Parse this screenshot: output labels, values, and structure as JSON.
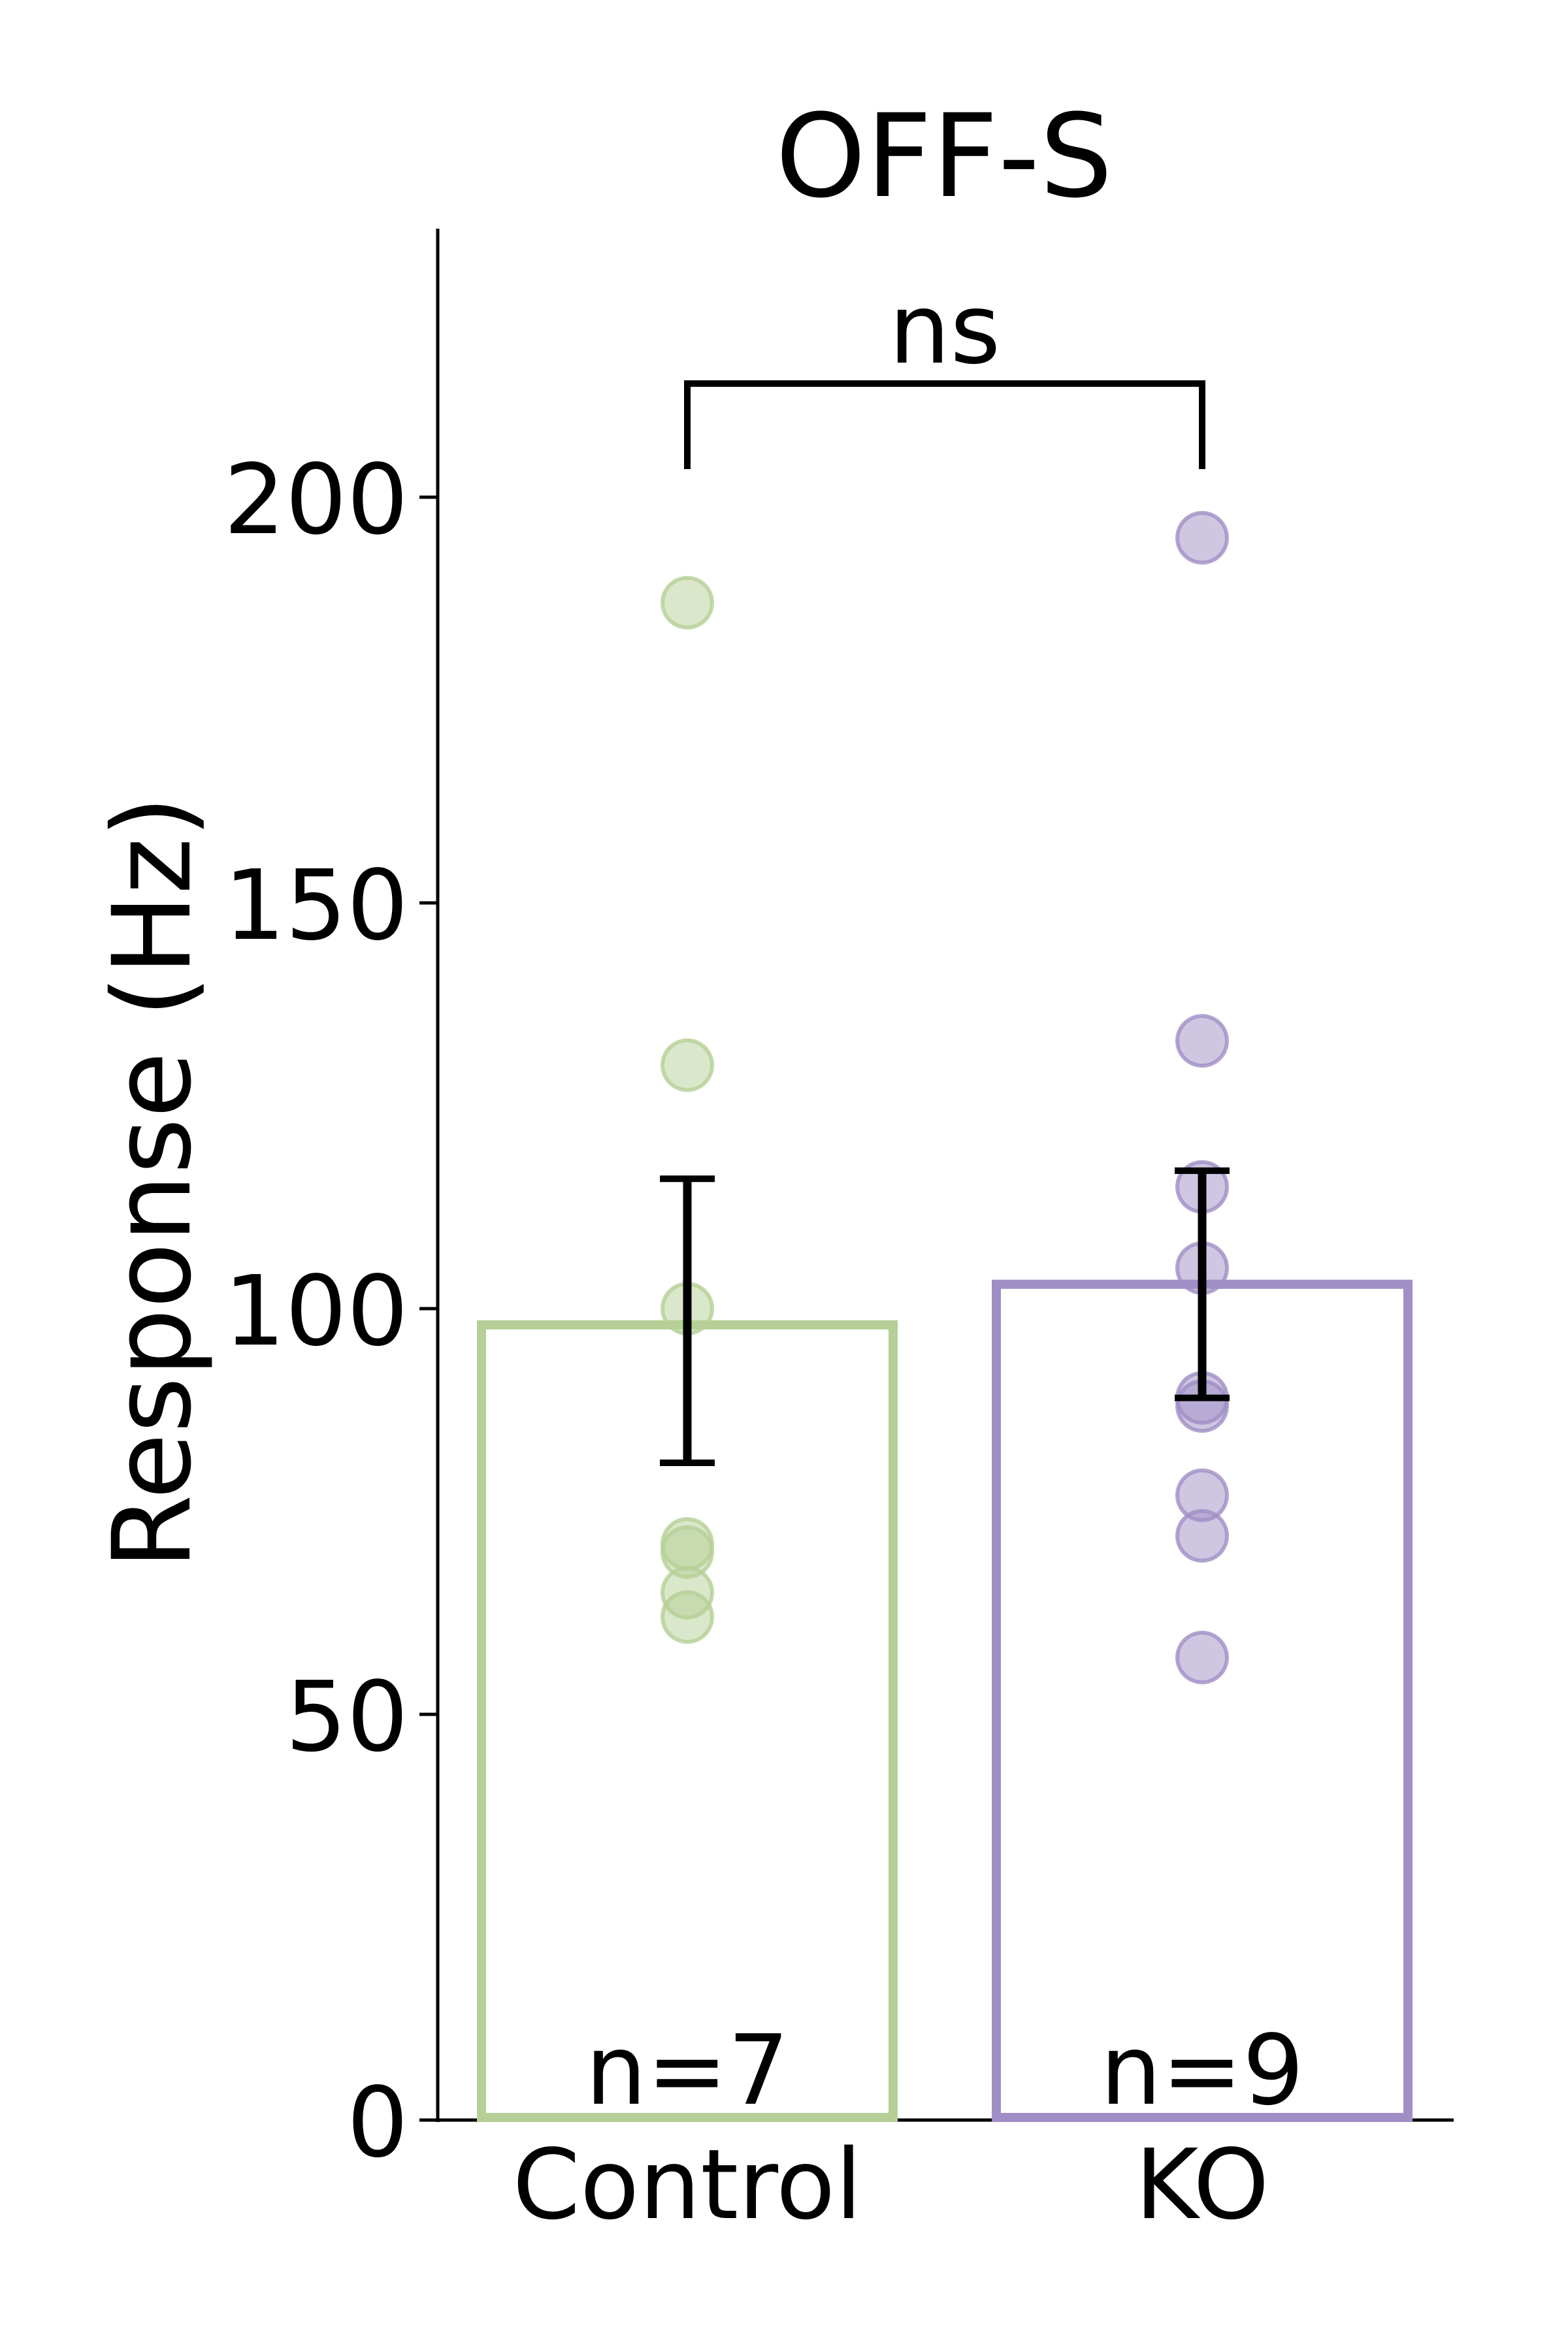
{
  "chart_data": {
    "type": "bar",
    "title": "OFF-S",
    "xlabel": "",
    "ylabel": "Response (Hz)",
    "ylim": [
      0,
      233
    ],
    "yticks": [
      0,
      50,
      100,
      150,
      200
    ],
    "ytick_labels": [
      "0",
      "50",
      "100",
      "150",
      "200"
    ],
    "grid": false,
    "legend": "none",
    "categories": [
      "Control",
      "KO"
    ],
    "values": [
      98,
      103
    ],
    "error_bars": [
      {
        "low": 81,
        "high": 116
      },
      {
        "low": 89,
        "high": 117
      }
    ],
    "counts": [
      "n=7",
      "n=9"
    ],
    "points": [
      [
        187,
        130,
        100,
        71,
        70,
        65,
        62
      ],
      [
        195,
        133,
        115,
        105,
        89,
        88,
        77,
        72,
        57
      ]
    ],
    "colors": [
      "#b5cf96",
      "#a08ec6"
    ],
    "significance": {
      "pair": [
        "Control",
        "KO"
      ],
      "label": "ns",
      "y": 214
    }
  }
}
